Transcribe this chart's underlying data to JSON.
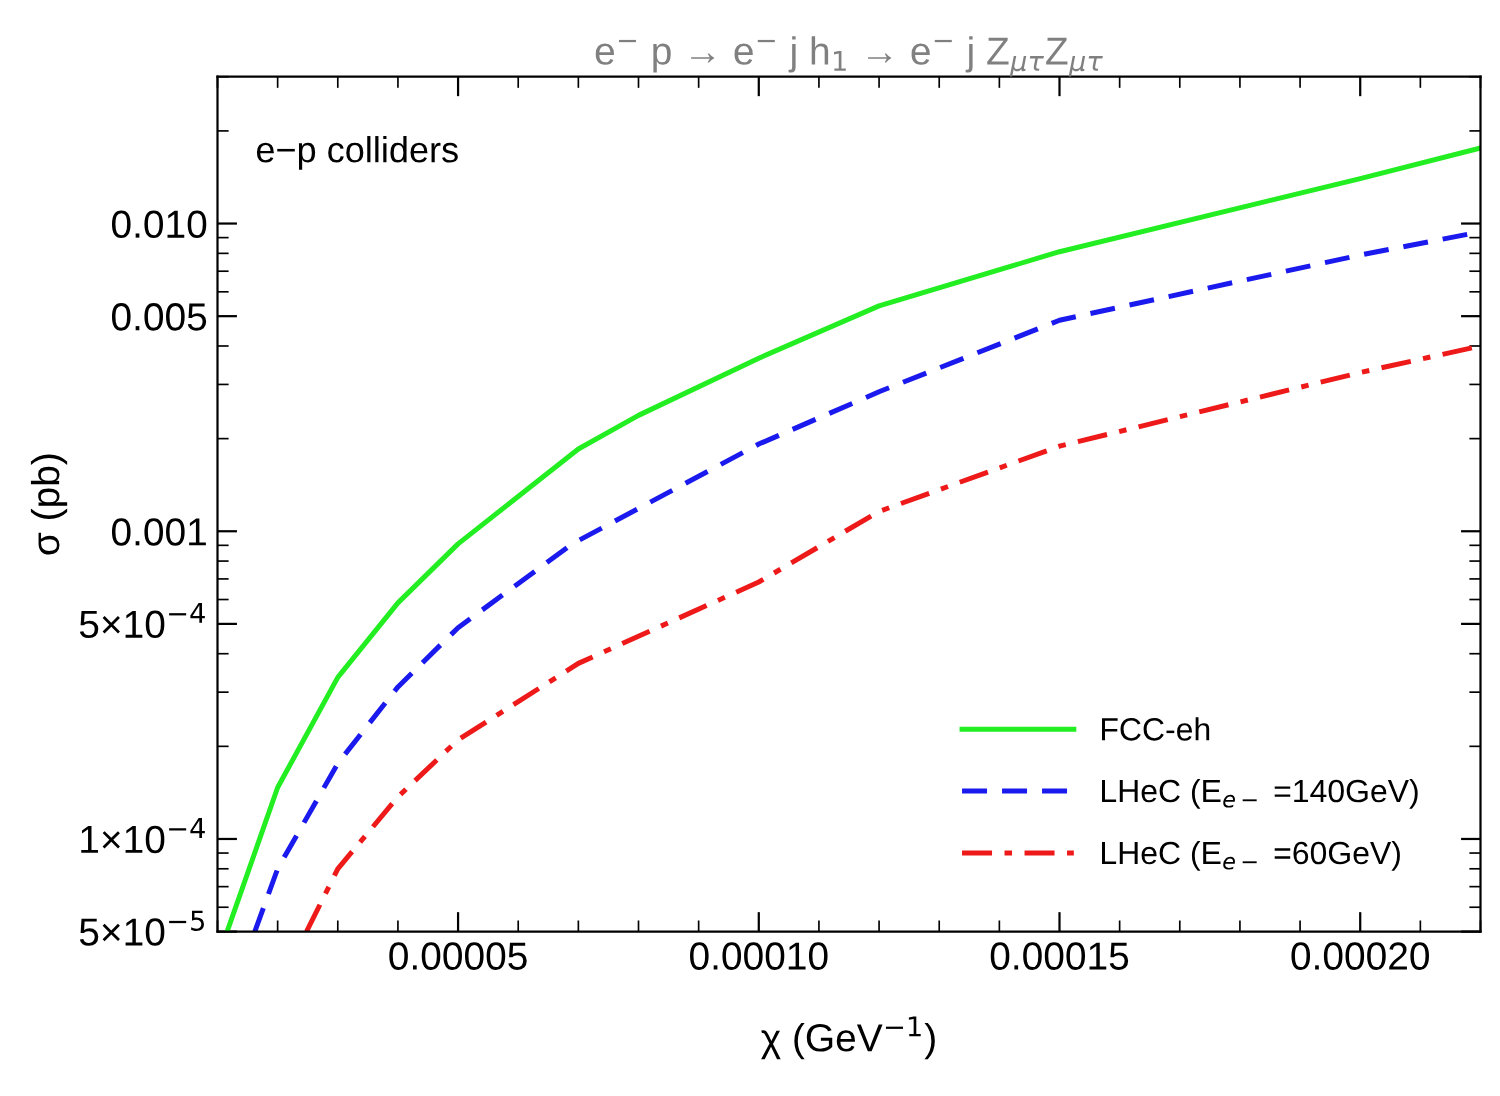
{
  "chart_data": {
    "type": "line",
    "title": "e$^{−}$ p → e$^{−}$ j h$_{1}$ → e$^{−}$ j Z$_{μτ}$Z$_{μτ}$",
    "xlabel": "χ (GeV$^{−1}$)",
    "ylabel": "σ (pb)",
    "log": "y",
    "xlim": [
      1e-05,
      0.00022
    ],
    "ylim": [
      5e-05,
      0.03
    ],
    "xticks": [
      {
        "value": 5e-05,
        "label": "0.00005"
      },
      {
        "value": 0.0001,
        "label": "0.00010"
      },
      {
        "value": 0.00015,
        "label": "0.00015"
      },
      {
        "value": 0.0002,
        "label": "0.00020"
      }
    ],
    "yticks": [
      {
        "value": 5e-05,
        "label": "5×10$^{−5}$"
      },
      {
        "value": 0.0001,
        "label": "1×10$^{−4}$"
      },
      {
        "value": 0.0005,
        "label": "5×10$^{−4}$"
      },
      {
        "value": 0.001,
        "label": "0.001"
      },
      {
        "value": 0.005,
        "label": "0.005"
      },
      {
        "value": 0.01,
        "label": "0.010"
      }
    ],
    "grid": false,
    "legend": "bottom right",
    "annotations": [
      "e−p colliders"
    ],
    "series": [
      {
        "name": "FCC-eh",
        "color": "#22ee22",
        "line_style": "solid",
        "x": [
          1.16e-05,
          2e-05,
          3e-05,
          4e-05,
          5e-05,
          7e-05,
          8e-05,
          0.0001,
          0.00012,
          0.00015,
          0.0002,
          0.00022
        ],
        "values": [
          5e-05,
          0.000147,
          0.000335,
          0.000585,
          0.00091,
          0.00185,
          0.00238,
          0.00365,
          0.0054,
          0.0081,
          0.014,
          0.0176
        ]
      },
      {
        "name": "LHeC (E$_{e−}$ =140GeV)",
        "color": "#1a1aee",
        "line_style": "dashed",
        "x": [
          1.62e-05,
          2e-05,
          3e-05,
          4e-05,
          5e-05,
          6.9e-05,
          0.0001,
          0.00012,
          0.00015,
          0.0002,
          0.00022
        ],
        "values": [
          5e-05,
          8e-05,
          0.000176,
          0.000312,
          0.000486,
          0.00091,
          0.00192,
          0.00284,
          0.00485,
          0.0079,
          0.0094
        ]
      },
      {
        "name": "LHeC (E$_{e−}$ =60GeV)",
        "color": "#ee1a1a",
        "line_style": "dashdot",
        "x": [
          2.48e-05,
          3e-05,
          4e-05,
          5e-05,
          7e-05,
          0.0001,
          0.00012,
          0.00015,
          0.0002,
          0.00022
        ],
        "values": [
          5e-05,
          8e-05,
          0.000137,
          0.00021,
          0.000372,
          0.000684,
          0.00116,
          0.00189,
          0.00328,
          0.004
        ]
      }
    ]
  }
}
